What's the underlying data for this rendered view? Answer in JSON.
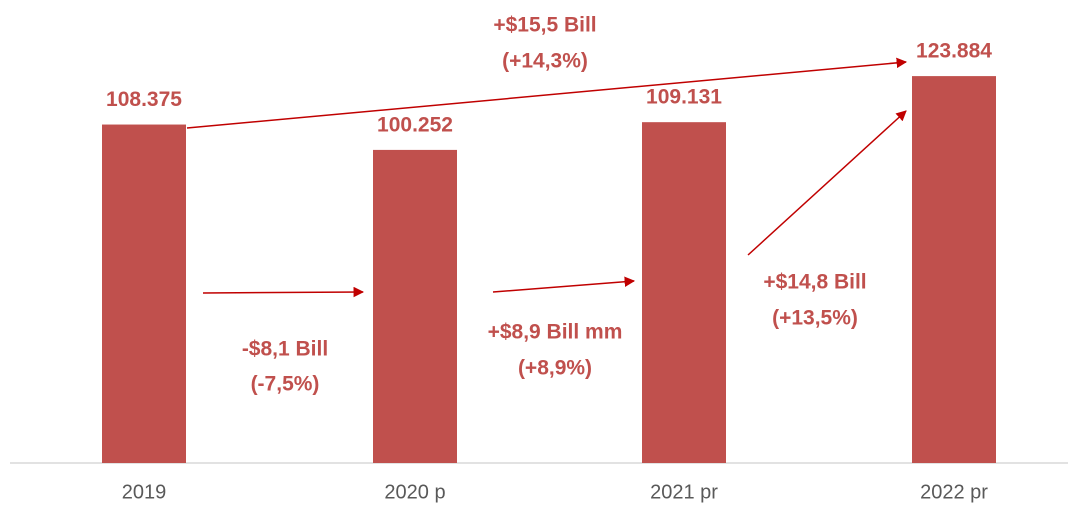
{
  "chart_data": {
    "type": "bar",
    "categories": [
      "2019",
      "2020 p",
      "2021 pr",
      "2022 pr"
    ],
    "values": [
      108.375,
      100.252,
      109.131,
      123.884
    ],
    "color": "#c0504d",
    "ylim": [
      0,
      130
    ],
    "annotations": [
      {
        "lines": [
          "+$15,5 Bill",
          "(+14,3%)"
        ]
      },
      {
        "lines": [
          "-$8,1 Bill",
          "(-7,5%)"
        ]
      },
      {
        "lines": [
          "+$8,9 Bill mm",
          "(+8,9%)"
        ]
      },
      {
        "lines": [
          "+$14,8 Bill",
          "(+13,5%)"
        ]
      }
    ]
  }
}
